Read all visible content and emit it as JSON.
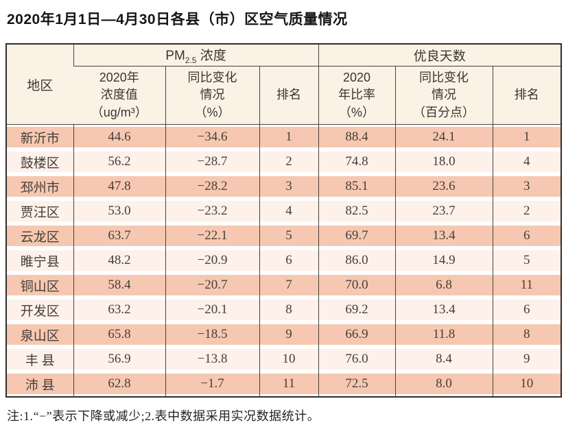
{
  "title": "2020年1月1日—4月30日各县（市）区空气质量情况",
  "table": {
    "region_header": "地区",
    "pm25_group": {
      "pre": "PM",
      "sub": "2.5",
      "post": " 浓度"
    },
    "good_days_group": "优良天数",
    "subheaders": [
      "2020年\n浓度值\n（ug/m³）",
      "同比变化\n情况\n（%）",
      "排名",
      "2020\n年比率\n（%）",
      "同比变化\n情况\n（百分点）",
      "排名"
    ],
    "rows": [
      [
        "新沂市",
        "44.6",
        "−34.6",
        "1",
        "88.4",
        "24.1",
        "1"
      ],
      [
        "鼓楼区",
        "56.2",
        "−28.7",
        "2",
        "74.8",
        "18.0",
        "4"
      ],
      [
        "邳州市",
        "47.8",
        "−28.2",
        "3",
        "85.1",
        "23.6",
        "3"
      ],
      [
        "贾汪区",
        "53.0",
        "−23.2",
        "4",
        "82.5",
        "23.7",
        "2"
      ],
      [
        "云龙区",
        "63.7",
        "−22.1",
        "5",
        "69.7",
        "13.4",
        "6"
      ],
      [
        "睢宁县",
        "48.2",
        "−20.9",
        "6",
        "86.0",
        "14.9",
        "5"
      ],
      [
        "铜山区",
        "58.4",
        "−20.7",
        "7",
        "70.0",
        "6.8",
        "11"
      ],
      [
        "开发区",
        "63.2",
        "−20.1",
        "8",
        "69.2",
        "13.4",
        "6"
      ],
      [
        "泉山区",
        "65.8",
        "−18.5",
        "9",
        "66.9",
        "11.8",
        "8"
      ],
      [
        "丰 县",
        "56.9",
        "−13.8",
        "10",
        "76.0",
        "8.4",
        "9"
      ],
      [
        "沛 县",
        "62.8",
        "−1.7",
        "11",
        "72.5",
        "8.0",
        "10"
      ]
    ]
  },
  "note": "注:1.“−”表示下降或减少;2.表中数据采用实况数据统计。",
  "colors": {
    "band_odd": "#f6c8b1",
    "band_even": "#fdf1ea",
    "header_bg": "#fbf2e6",
    "grid_line": "#45413d",
    "outer_border": "#2e2c2a",
    "text_dark": "#453e38",
    "title_text": "#171514"
  }
}
